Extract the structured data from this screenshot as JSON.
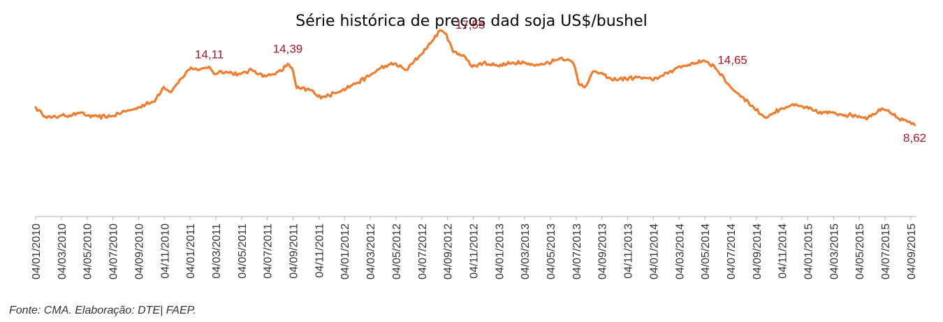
{
  "chart_data": {
    "type": "line",
    "title": "Série histórica de preços dad soja US$/bushel",
    "xlabel": "",
    "ylabel": "",
    "ylim": [
      0,
      18.5
    ],
    "grid": false,
    "legend": "none",
    "x_tick_labels": [
      "04/01/2010",
      "04/03/2010",
      "04/05/2010",
      "04/07/2010",
      "04/09/2010",
      "04/11/2010",
      "04/01/2011",
      "04/03/2011",
      "04/05/2011",
      "04/07/2011",
      "04/09/2011",
      "04/11/2011",
      "04/01/2012",
      "04/03/2012",
      "04/05/2012",
      "04/07/2012",
      "04/09/2012",
      "04/11/2012",
      "04/01/2013",
      "04/03/2013",
      "04/05/2013",
      "04/07/2013",
      "04/09/2013",
      "04/11/2013",
      "04/01/2014",
      "04/03/2014",
      "04/05/2014",
      "04/07/2014",
      "04/09/2014",
      "04/11/2014",
      "04/01/2015",
      "04/03/2015",
      "04/05/2015",
      "04/07/2015",
      "04/09/2015"
    ],
    "series": [
      {
        "color": "#ED7D31",
        "points": [
          [
            "04/01/2010",
            10.3
          ],
          [
            "2010-01-20",
            9.6
          ],
          [
            "2010-02-10",
            9.3
          ],
          [
            "04/03/2010",
            9.5
          ],
          [
            "2010-04-01",
            9.55
          ],
          [
            "2010-04-20",
            9.8
          ],
          [
            "04/05/2010",
            9.5
          ],
          [
            "2010-06-01",
            9.4
          ],
          [
            "04/07/2010",
            9.45
          ],
          [
            "2010-07-20",
            9.7
          ],
          [
            "2010-08-10",
            10.0
          ],
          [
            "2010-08-25",
            10.1
          ],
          [
            "04/09/2010",
            10.3
          ],
          [
            "2010-10-10",
            10.8
          ],
          [
            "04/11/2010",
            12.2
          ],
          [
            "2010-11-20",
            11.7
          ],
          [
            "2010-12-15",
            13.0
          ],
          [
            "04/01/2011",
            13.85
          ],
          [
            "2011-02-01",
            13.9
          ],
          [
            "2011-02-20",
            14.11
          ],
          [
            "04/03/2011",
            13.4
          ],
          [
            "2011-03-20",
            13.7
          ],
          [
            "2011-04-15",
            13.5
          ],
          [
            "04/05/2011",
            13.4
          ],
          [
            "2011-06-01",
            13.8
          ],
          [
            "04/07/2011",
            13.2
          ],
          [
            "2011-08-10",
            13.7
          ],
          [
            "2011-08-25",
            14.39
          ],
          [
            "04/09/2011",
            14.0
          ],
          [
            "2011-09-15",
            12.1
          ],
          [
            "2011-10-20",
            11.9
          ],
          [
            "04/11/2011",
            11.3
          ],
          [
            "2011-12-01",
            11.4
          ],
          [
            "04/01/2012",
            12.0
          ],
          [
            "2012-02-01",
            12.5
          ],
          [
            "04/03/2012",
            13.2
          ],
          [
            "2012-04-01",
            14.0
          ],
          [
            "04/05/2012",
            14.4
          ],
          [
            "2012-06-01",
            13.8
          ],
          [
            "04/07/2012",
            15.2
          ],
          [
            "2012-08-01",
            16.5
          ],
          [
            "2012-08-20",
            17.55
          ],
          [
            "04/09/2012",
            17.2
          ],
          [
            "2012-09-20",
            15.5
          ],
          [
            "2012-10-15",
            15.2
          ],
          [
            "04/11/2012",
            14.1
          ],
          [
            "2012-12-01",
            14.5
          ],
          [
            "04/01/2013",
            14.2
          ],
          [
            "2013-02-01",
            14.4
          ],
          [
            "04/03/2013",
            14.6
          ],
          [
            "2013-04-01",
            14.2
          ],
          [
            "04/05/2013",
            14.5
          ],
          [
            "2013-06-01",
            14.9
          ],
          [
            "2013-06-20",
            14.8
          ],
          [
            "04/07/2013",
            14.3
          ],
          [
            "2013-07-15",
            12.5
          ],
          [
            "2013-08-01",
            12.3
          ],
          [
            "2013-08-20",
            13.7
          ],
          [
            "04/09/2013",
            13.5
          ],
          [
            "2013-10-01",
            12.9
          ],
          [
            "04/11/2013",
            13.0
          ],
          [
            "2013-12-01",
            13.1
          ],
          [
            "04/01/2014",
            12.9
          ],
          [
            "2014-02-01",
            13.3
          ],
          [
            "04/03/2014",
            14.0
          ],
          [
            "2014-04-01",
            14.3
          ],
          [
            "04/05/2014",
            14.65
          ],
          [
            "2014-06-01",
            14.2
          ],
          [
            "04/07/2014",
            12.5
          ],
          [
            "2014-07-20",
            11.8
          ],
          [
            "2014-08-10",
            11.2
          ],
          [
            "04/09/2014",
            10.2
          ],
          [
            "2014-10-01",
            9.3
          ],
          [
            "04/11/2014",
            10.1
          ],
          [
            "2014-12-01",
            10.5
          ],
          [
            "04/01/2015",
            10.3
          ],
          [
            "2015-02-01",
            9.8
          ],
          [
            "04/03/2015",
            9.8
          ],
          [
            "2015-04-01",
            9.6
          ],
          [
            "04/05/2015",
            9.5
          ],
          [
            "2015-06-01",
            9.3
          ],
          [
            "04/07/2015",
            10.2
          ],
          [
            "2015-07-20",
            10.0
          ],
          [
            "2015-08-10",
            9.3
          ],
          [
            "04/09/2015",
            8.9
          ],
          [
            "2015-09-20",
            8.62
          ]
        ]
      }
    ],
    "annotations": [
      {
        "label": "14,11",
        "date": "2011-02-20",
        "value": 14.11
      },
      {
        "label": "14,39",
        "date": "2011-08-25",
        "value": 14.39
      },
      {
        "label": "17,55",
        "date": "2012-08-20",
        "value": 17.55
      },
      {
        "label": "14,65",
        "date": "04/05/2014",
        "value": 14.65
      },
      {
        "label": "8,62",
        "date": "2015-09-20",
        "value": 8.62
      }
    ],
    "annotation_color": "#A5192A"
  },
  "footer": {
    "source": "Fonte: CMA. Elaboração: DTE| FAEP."
  }
}
